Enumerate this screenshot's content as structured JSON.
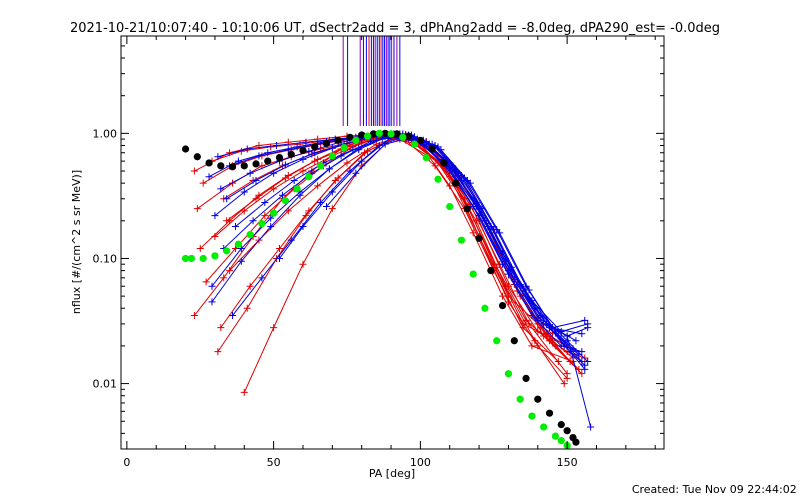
{
  "chart_data": {
    "type": "line",
    "title": "2021-10-21/10:07:40 - 10:10:06 UT, dSectr2add = 3, dPhAng2add = -8.0deg, dPA290_est= -0.0deg",
    "xlabel": "PA [deg]",
    "ylabel": "nflux [#/(cm^2 s sr MeV)]",
    "xlim": [
      -2,
      183
    ],
    "ylim": [
      0.003,
      6.0
    ],
    "yscale": "log",
    "x_ticks": [
      0,
      50,
      100,
      150
    ],
    "x_tick_labels": [
      "0",
      "50",
      "100",
      "150"
    ],
    "y_ticks": [
      0.01,
      0.1,
      1.0
    ],
    "y_tick_labels": [
      "0.01",
      "0.10",
      "1.00"
    ],
    "grid": false,
    "colors": {
      "red_traces": "#e00000",
      "blue_traces": "#0000e0",
      "black_fit": "#000000",
      "green_fit": "#00ee00",
      "marker_lines_blue": "#0000ff",
      "marker_lines_purple": "#8800aa",
      "marker_lines_red": "#ff0000"
    },
    "vertical_marker_lines": [
      {
        "x": 73.7,
        "color": "purple"
      },
      {
        "x": 75.2,
        "color": "blue"
      },
      {
        "x": 79.5,
        "color": "purple"
      },
      {
        "x": 80.6,
        "color": "blue"
      },
      {
        "x": 81.6,
        "color": "blue"
      },
      {
        "x": 82.5,
        "color": "red"
      },
      {
        "x": 83.3,
        "color": "blue"
      },
      {
        "x": 84.0,
        "color": "blue"
      },
      {
        "x": 84.6,
        "color": "purple"
      },
      {
        "x": 85.3,
        "color": "blue"
      },
      {
        "x": 86.0,
        "color": "blue"
      },
      {
        "x": 86.6,
        "color": "red"
      },
      {
        "x": 87.2,
        "color": "blue"
      },
      {
        "x": 87.8,
        "color": "blue"
      },
      {
        "x": 88.4,
        "color": "purple"
      },
      {
        "x": 89.0,
        "color": "blue"
      },
      {
        "x": 89.6,
        "color": "blue"
      },
      {
        "x": 90.2,
        "color": "red"
      },
      {
        "x": 91.0,
        "color": "blue"
      },
      {
        "x": 92.0,
        "color": "purple"
      },
      {
        "x": 93.0,
        "color": "blue"
      }
    ],
    "series": [
      {
        "style": "black-dots",
        "x": [
          20,
          24,
          28,
          32,
          36,
          40,
          44,
          48,
          52,
          56,
          60,
          64,
          68,
          72,
          76,
          80,
          84,
          88,
          92,
          96,
          100,
          104,
          108,
          112,
          116,
          120,
          124,
          128,
          132,
          136,
          140,
          144,
          148,
          150,
          152,
          153
        ],
        "y": [
          0.75,
          0.65,
          0.58,
          0.55,
          0.54,
          0.55,
          0.57,
          0.6,
          0.64,
          0.68,
          0.73,
          0.78,
          0.83,
          0.88,
          0.93,
          0.97,
          0.99,
          1.0,
          0.99,
          0.95,
          0.88,
          0.75,
          0.58,
          0.4,
          0.25,
          0.145,
          0.08,
          0.042,
          0.022,
          0.011,
          0.0075,
          0.0058,
          0.0047,
          0.0042,
          0.0037,
          0.0034
        ]
      },
      {
        "style": "green-dots",
        "x": [
          20,
          22,
          26,
          30,
          34,
          38,
          42,
          46,
          50,
          54,
          58,
          62,
          66,
          70,
          74,
          78,
          82,
          86,
          90,
          94,
          98,
          102,
          106,
          110,
          114,
          118,
          122,
          126,
          130,
          134,
          138,
          142,
          146,
          148,
          150
        ],
        "y": [
          0.1,
          0.1,
          0.1,
          0.105,
          0.115,
          0.13,
          0.155,
          0.19,
          0.23,
          0.29,
          0.36,
          0.45,
          0.55,
          0.66,
          0.77,
          0.88,
          0.95,
          1.0,
          0.99,
          0.93,
          0.82,
          0.64,
          0.43,
          0.26,
          0.14,
          0.075,
          0.04,
          0.022,
          0.012,
          0.0075,
          0.0055,
          0.0045,
          0.0038,
          0.0035,
          0.0032
        ]
      },
      {
        "style": "red-trace",
        "x": [
          23,
          35,
          45,
          55,
          65,
          75,
          85,
          95,
          105,
          112,
          120,
          130,
          140,
          145
        ],
        "y": [
          0.5,
          0.7,
          0.8,
          0.85,
          0.9,
          0.95,
          0.98,
          0.92,
          0.7,
          0.4,
          0.15,
          0.05,
          0.03,
          0.025
        ]
      },
      {
        "style": "red-trace",
        "x": [
          24,
          36,
          46,
          56,
          66,
          76,
          86,
          96,
          106,
          115,
          125,
          135,
          150
        ],
        "y": [
          0.25,
          0.4,
          0.55,
          0.65,
          0.75,
          0.85,
          0.95,
          0.9,
          0.6,
          0.3,
          0.09,
          0.03,
          0.02
        ]
      },
      {
        "style": "red-trace",
        "x": [
          23,
          33,
          43,
          53,
          63,
          73,
          83,
          93,
          103,
          110,
          118,
          128,
          138,
          152
        ],
        "y": [
          0.035,
          0.07,
          0.15,
          0.3,
          0.5,
          0.75,
          0.95,
          0.9,
          0.65,
          0.38,
          0.16,
          0.05,
          0.02,
          0.015
        ]
      },
      {
        "style": "red-trace",
        "x": [
          25,
          35,
          45,
          55,
          65,
          75,
          85,
          95,
          105,
          115,
          125,
          135,
          147
        ],
        "y": [
          0.12,
          0.2,
          0.32,
          0.46,
          0.62,
          0.8,
          0.93,
          0.88,
          0.55,
          0.25,
          0.08,
          0.028,
          0.015
        ]
      },
      {
        "style": "red-trace",
        "x": [
          27,
          37,
          47,
          57,
          67,
          77,
          87,
          97,
          107,
          117,
          127,
          137,
          150
        ],
        "y": [
          0.065,
          0.12,
          0.22,
          0.36,
          0.55,
          0.78,
          0.95,
          0.88,
          0.58,
          0.27,
          0.09,
          0.03,
          0.012
        ]
      },
      {
        "style": "red-trace",
        "x": [
          29,
          39,
          49,
          59,
          69,
          79,
          89,
          99,
          109,
          119,
          129,
          139,
          149
        ],
        "y": [
          0.6,
          0.72,
          0.78,
          0.82,
          0.88,
          0.94,
          0.98,
          0.85,
          0.5,
          0.2,
          0.06,
          0.022,
          0.01
        ]
      },
      {
        "style": "red-trace",
        "x": [
          31,
          41,
          51,
          61,
          71,
          81,
          91,
          101,
          111,
          121,
          131,
          141,
          151
        ],
        "y": [
          0.018,
          0.04,
          0.1,
          0.22,
          0.42,
          0.7,
          0.92,
          0.85,
          0.52,
          0.22,
          0.07,
          0.028,
          0.015
        ]
      },
      {
        "style": "red-trace",
        "x": [
          33,
          43,
          53,
          63,
          73,
          83,
          93,
          103,
          113,
          123,
          133,
          143,
          153
        ],
        "y": [
          0.3,
          0.42,
          0.55,
          0.68,
          0.8,
          0.92,
          0.97,
          0.8,
          0.45,
          0.18,
          0.055,
          0.025,
          0.018
        ]
      },
      {
        "style": "red-trace",
        "x": [
          40,
          50,
          60,
          70,
          80,
          90,
          100,
          110,
          120,
          130,
          140,
          150
        ],
        "y": [
          0.0085,
          0.028,
          0.09,
          0.25,
          0.55,
          0.9,
          0.82,
          0.45,
          0.15,
          0.045,
          0.02,
          0.011
        ]
      },
      {
        "style": "red-trace",
        "x": [
          34,
          44,
          54,
          64,
          74,
          84,
          94,
          104,
          114,
          124,
          134,
          144,
          154
        ],
        "y": [
          0.2,
          0.3,
          0.44,
          0.6,
          0.76,
          0.9,
          0.96,
          0.78,
          0.42,
          0.16,
          0.05,
          0.022,
          0.013
        ]
      },
      {
        "style": "red-trace",
        "x": [
          26,
          36,
          46,
          56,
          66,
          76,
          86,
          96,
          106,
          116,
          126,
          136,
          146
        ],
        "y": [
          0.4,
          0.55,
          0.66,
          0.74,
          0.82,
          0.9,
          0.97,
          0.9,
          0.58,
          0.26,
          0.085,
          0.032,
          0.02
        ]
      },
      {
        "style": "red-trace",
        "x": [
          32,
          42,
          52,
          62,
          72,
          82,
          92,
          102,
          112,
          122,
          132,
          142,
          155
        ],
        "y": [
          0.028,
          0.06,
          0.12,
          0.24,
          0.44,
          0.72,
          0.95,
          0.86,
          0.5,
          0.2,
          0.062,
          0.024,
          0.012
        ]
      },
      {
        "style": "red-trace",
        "x": [
          30,
          40,
          50,
          60,
          70,
          80,
          90,
          100,
          110,
          120,
          130,
          140,
          150,
          156
        ],
        "y": [
          0.15,
          0.24,
          0.36,
          0.5,
          0.66,
          0.84,
          0.97,
          0.86,
          0.5,
          0.2,
          0.06,
          0.026,
          0.018,
          0.016
        ]
      },
      {
        "style": "red-trace",
        "x": [
          35,
          45,
          55,
          65,
          75,
          85,
          95,
          105,
          115,
          125,
          135,
          145,
          152
        ],
        "y": [
          0.08,
          0.14,
          0.24,
          0.38,
          0.58,
          0.82,
          0.96,
          0.8,
          0.44,
          0.17,
          0.052,
          0.022,
          0.016
        ]
      },
      {
        "style": "blue-trace",
        "x": [
          28,
          38,
          48,
          58,
          68,
          78,
          88,
          98,
          108,
          118,
          128,
          138,
          148,
          155
        ],
        "y": [
          0.45,
          0.6,
          0.7,
          0.78,
          0.86,
          0.93,
          0.99,
          0.9,
          0.58,
          0.26,
          0.09,
          0.035,
          0.02,
          0.018
        ]
      },
      {
        "style": "blue-trace",
        "x": [
          29,
          39,
          49,
          59,
          69,
          79,
          89,
          99,
          109,
          119,
          129,
          139,
          150,
          157
        ],
        "y": [
          0.045,
          0.095,
          0.18,
          0.32,
          0.52,
          0.76,
          0.96,
          0.88,
          0.56,
          0.26,
          0.095,
          0.04,
          0.022,
          0.015
        ]
      },
      {
        "style": "blue-trace",
        "x": [
          30,
          40,
          50,
          60,
          70,
          80,
          90,
          100,
          110,
          120,
          130,
          140,
          150,
          157
        ],
        "y": [
          0.22,
          0.34,
          0.48,
          0.62,
          0.76,
          0.9,
          0.99,
          0.86,
          0.52,
          0.22,
          0.075,
          0.032,
          0.024,
          0.028
        ]
      },
      {
        "style": "blue-trace",
        "x": [
          31,
          41,
          51,
          61,
          71,
          81,
          91,
          101,
          111,
          121,
          131,
          141,
          151,
          156
        ],
        "y": [
          0.65,
          0.75,
          0.8,
          0.85,
          0.9,
          0.95,
          0.99,
          0.88,
          0.55,
          0.25,
          0.085,
          0.035,
          0.018,
          0.013
        ]
      },
      {
        "style": "blue-trace",
        "x": [
          36,
          46,
          56,
          66,
          76,
          86,
          96,
          106,
          116,
          126,
          136,
          146,
          154
        ],
        "y": [
          0.035,
          0.07,
          0.14,
          0.28,
          0.5,
          0.8,
          0.97,
          0.78,
          0.42,
          0.17,
          0.06,
          0.026,
          0.017
        ]
      },
      {
        "style": "blue-trace",
        "x": [
          33,
          43,
          53,
          63,
          73,
          83,
          93,
          103,
          113,
          123,
          133,
          143,
          153
        ],
        "y": [
          0.12,
          0.2,
          0.32,
          0.48,
          0.66,
          0.86,
          0.99,
          0.82,
          0.46,
          0.18,
          0.062,
          0.03,
          0.022
        ]
      },
      {
        "style": "blue-trace",
        "x": [
          52,
          60,
          70,
          80,
          90,
          100,
          110,
          120,
          130,
          140,
          150,
          158
        ],
        "y": [
          0.1,
          0.18,
          0.34,
          0.6,
          0.93,
          0.85,
          0.5,
          0.22,
          0.08,
          0.034,
          0.024,
          0.0045
        ]
      },
      {
        "style": "blue-trace",
        "x": [
          34,
          44,
          54,
          64,
          74,
          84,
          94,
          104,
          114,
          124,
          134,
          144,
          155
        ],
        "y": [
          0.3,
          0.42,
          0.56,
          0.7,
          0.82,
          0.94,
          0.99,
          0.82,
          0.46,
          0.18,
          0.062,
          0.028,
          0.025
        ]
      },
      {
        "style": "blue-trace",
        "x": [
          35,
          45,
          55,
          65,
          75,
          85,
          95,
          105,
          115,
          125,
          135,
          145,
          156
        ],
        "y": [
          0.55,
          0.66,
          0.74,
          0.82,
          0.9,
          0.96,
          0.98,
          0.8,
          0.44,
          0.17,
          0.058,
          0.028,
          0.032
        ]
      },
      {
        "style": "blue-trace",
        "x": [
          29,
          39,
          49,
          59,
          69,
          79,
          89,
          99,
          109,
          119,
          129,
          139,
          149,
          156
        ],
        "y": [
          0.06,
          0.12,
          0.21,
          0.34,
          0.52,
          0.74,
          0.95,
          0.9,
          0.6,
          0.28,
          0.1,
          0.04,
          0.02,
          0.014
        ]
      },
      {
        "style": "blue-trace",
        "x": [
          32,
          42,
          52,
          62,
          72,
          82,
          92,
          102,
          112,
          122,
          132,
          142,
          152
        ],
        "y": [
          0.36,
          0.48,
          0.6,
          0.72,
          0.84,
          0.94,
          0.99,
          0.85,
          0.5,
          0.2,
          0.068,
          0.03,
          0.019
        ]
      },
      {
        "style": "blue-trace",
        "x": [
          68,
          78,
          88,
          98,
          108,
          118,
          128,
          138,
          148,
          157
        ],
        "y": [
          0.26,
          0.48,
          0.82,
          0.94,
          0.62,
          0.3,
          0.11,
          0.046,
          0.026,
          0.03
        ]
      },
      {
        "style": "blue-trace",
        "x": [
          37,
          47,
          57,
          67,
          77,
          87,
          97,
          107,
          117,
          127,
          137,
          147,
          155
        ],
        "y": [
          0.18,
          0.28,
          0.42,
          0.58,
          0.74,
          0.9,
          0.97,
          0.74,
          0.4,
          0.16,
          0.056,
          0.024,
          0.015
        ]
      }
    ]
  },
  "footer": {
    "created_label": "Created: Tue Nov 09 22:44:02 2021"
  }
}
